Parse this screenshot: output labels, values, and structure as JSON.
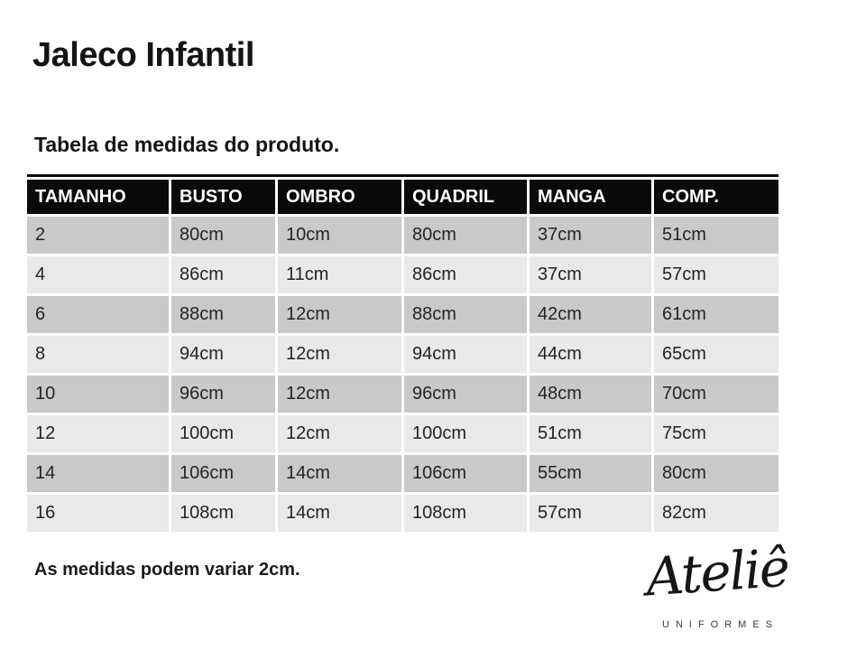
{
  "page": {
    "title": "Jaleco Infantil",
    "subtitle": "Tabela de medidas do produto.",
    "note": "As medidas podem variar 2cm."
  },
  "table": {
    "columns": [
      "TAMANHO",
      "BUSTO",
      "OMBRO",
      "QUADRIL",
      "MANGA",
      "COMP."
    ],
    "rows": [
      [
        "2",
        "80cm",
        "10cm",
        "80cm",
        "37cm",
        "51cm"
      ],
      [
        "4",
        "86cm",
        "11cm",
        "86cm",
        "37cm",
        "57cm"
      ],
      [
        "6",
        "88cm",
        "12cm",
        "88cm",
        "42cm",
        "61cm"
      ],
      [
        "8",
        "94cm",
        "12cm",
        "94cm",
        "44cm",
        "65cm"
      ],
      [
        "10",
        "96cm",
        "12cm",
        "96cm",
        "48cm",
        "70cm"
      ],
      [
        "12",
        "100cm",
        "12cm",
        "100cm",
        "51cm",
        "75cm"
      ],
      [
        "14",
        "106cm",
        "14cm",
        "106cm",
        "55cm",
        "80cm"
      ],
      [
        "16",
        "108cm",
        "14cm",
        "108cm",
        "57cm",
        "82cm"
      ]
    ]
  },
  "logo": {
    "brand": "Ateliê",
    "tagline": "UNIFORMES"
  },
  "colors": {
    "header_bg": "#0a0a0a",
    "row_dark": "#c9c9c9",
    "row_light": "#e9e9e9",
    "cell_text": "#242424"
  }
}
